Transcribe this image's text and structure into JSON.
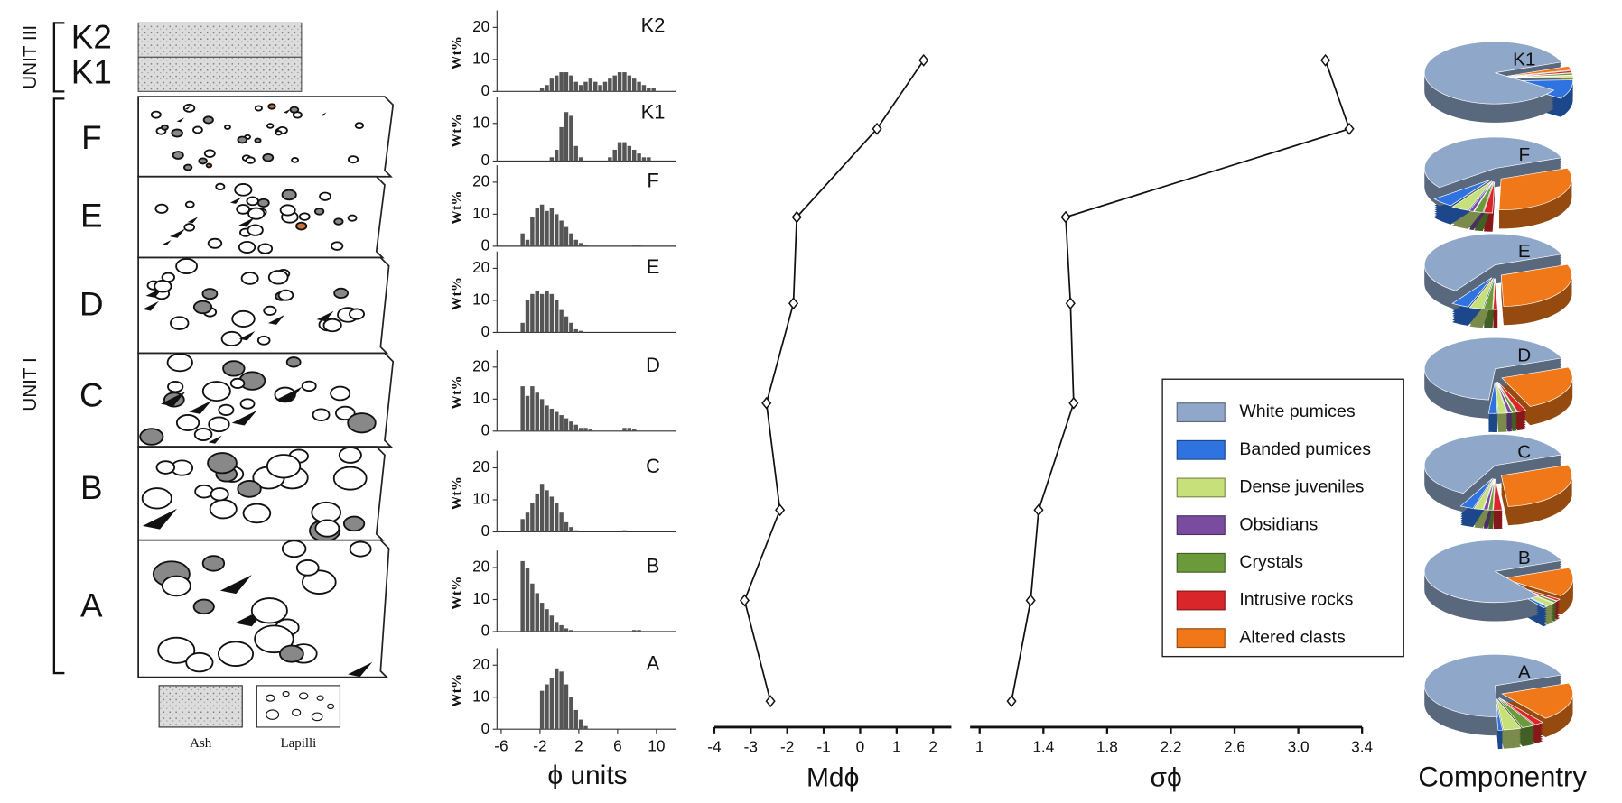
{
  "stratigraphy": {
    "units": [
      "UNIT III",
      "UNIT I"
    ],
    "beds": [
      "K2",
      "K1",
      "F",
      "E",
      "D",
      "C",
      "B",
      "A"
    ],
    "legend": [
      "Ash",
      "Lapilli"
    ]
  },
  "chart_data": [
    {
      "type": "histogram",
      "title": "K2",
      "ylabel": "Wt%",
      "xlim": [
        -6,
        12
      ],
      "ylim": [
        0,
        24
      ],
      "yticks": [
        0,
        10,
        20
      ],
      "bins": [
        -4,
        -3.5,
        -3,
        -2.5,
        -2,
        -1.5,
        -1,
        -0.5,
        0,
        0.5,
        1,
        1.5,
        2,
        2.5,
        3,
        3.5,
        4,
        4.5,
        5,
        5.5,
        6,
        6.5,
        7,
        7.5,
        8,
        8.5,
        9,
        9.5,
        10
      ],
      "values": [
        0,
        0,
        0,
        0,
        1,
        2,
        4,
        5,
        6,
        6,
        5,
        3,
        2,
        3,
        4,
        3,
        2,
        3,
        4,
        5,
        6,
        6,
        5,
        4,
        3,
        2,
        1,
        1
      ],
      "color": "#555555"
    },
    {
      "type": "histogram",
      "title": "K1",
      "ylabel": "Wt%",
      "xlim": [
        -6,
        12
      ],
      "ylim": [
        0,
        16
      ],
      "yticks": [
        0,
        10
      ],
      "bins": [
        -4,
        -3.5,
        -3,
        -2.5,
        -2,
        -1.5,
        -1,
        -0.5,
        0,
        0.5,
        1,
        1.5,
        2,
        2.5,
        3,
        3.5,
        4,
        4.5,
        5,
        5.5,
        6,
        6.5,
        7,
        7.5,
        8,
        8.5,
        9,
        9.5,
        10
      ],
      "values": [
        0,
        0,
        0,
        0,
        0,
        0,
        1,
        3,
        9,
        13,
        12,
        4,
        1,
        0,
        0,
        0,
        0,
        0,
        1,
        3,
        5,
        5,
        4,
        3,
        2,
        1,
        1,
        0
      ],
      "color": "#555555"
    },
    {
      "type": "histogram",
      "title": "F",
      "ylabel": "Wt%",
      "xlim": [
        -6,
        12
      ],
      "ylim": [
        0,
        24
      ],
      "yticks": [
        0,
        10,
        20
      ],
      "bins": [
        -4,
        -3.5,
        -3,
        -2.5,
        -2,
        -1.5,
        -1,
        -0.5,
        0,
        0.5,
        1,
        1.5,
        2,
        2.5,
        3,
        3.5,
        4,
        4.5,
        5,
        5.5,
        6,
        6.5,
        7,
        7.5,
        8,
        8.5,
        9,
        9.5,
        10
      ],
      "values": [
        4,
        2,
        9,
        12,
        13,
        11,
        12,
        10,
        8,
        6,
        4,
        2,
        1,
        0.5,
        0,
        0,
        0,
        0,
        0,
        0,
        0,
        0,
        0,
        0.5,
        0.5,
        0,
        0,
        0
      ],
      "color": "#555555"
    },
    {
      "type": "histogram",
      "title": "E",
      "ylabel": "Wt%",
      "xlim": [
        -6,
        12
      ],
      "ylim": [
        0,
        24
      ],
      "yticks": [
        0,
        10,
        20
      ],
      "bins": [
        -4,
        -3.5,
        -3,
        -2.5,
        -2,
        -1.5,
        -1,
        -0.5,
        0,
        0.5,
        1,
        1.5,
        2,
        2.5,
        3,
        3.5,
        4,
        4.5,
        5,
        5.5,
        6,
        6.5,
        7,
        7.5,
        8,
        8.5,
        9,
        9.5,
        10
      ],
      "values": [
        3,
        10,
        12,
        13,
        12,
        13,
        12,
        10,
        7,
        5,
        3,
        1,
        0.5,
        0,
        0,
        0,
        0,
        0,
        0,
        0,
        0,
        0,
        0,
        0,
        0,
        0,
        0,
        0
      ],
      "color": "#555555"
    },
    {
      "type": "histogram",
      "title": "D",
      "ylabel": "Wt%",
      "xlim": [
        -6,
        12
      ],
      "ylim": [
        0,
        24
      ],
      "yticks": [
        0,
        10,
        20
      ],
      "bins": [
        -4,
        -3.5,
        -3,
        -2.5,
        -2,
        -1.5,
        -1,
        -0.5,
        0,
        0.5,
        1,
        1.5,
        2,
        2.5,
        3,
        3.5,
        4,
        4.5,
        5,
        5.5,
        6,
        6.5,
        7,
        7.5,
        8,
        8.5,
        9,
        9.5,
        10
      ],
      "values": [
        14,
        11,
        14,
        12,
        10,
        8,
        7,
        6,
        5,
        4,
        3,
        2,
        1,
        1,
        0.5,
        0,
        0,
        0,
        0,
        0,
        0,
        1,
        1,
        0.5,
        0,
        0,
        0,
        0
      ],
      "color": "#555555"
    },
    {
      "type": "histogram",
      "title": "C",
      "ylabel": "Wt%",
      "xlim": [
        -6,
        12
      ],
      "ylim": [
        0,
        24
      ],
      "yticks": [
        0,
        10,
        20
      ],
      "bins": [
        -4,
        -3.5,
        -3,
        -2.5,
        -2,
        -1.5,
        -1,
        -0.5,
        0,
        0.5,
        1,
        1.5,
        2,
        2.5,
        3,
        3.5,
        4,
        4.5,
        5,
        5.5,
        6,
        6.5,
        7,
        7.5,
        8,
        8.5,
        9,
        9.5,
        10
      ],
      "values": [
        4,
        6,
        9,
        12,
        15,
        13,
        11,
        9,
        6,
        3,
        1.5,
        0.5,
        0,
        0,
        0,
        0,
        0,
        0,
        0,
        0,
        0,
        0.5,
        0,
        0,
        0,
        0,
        0,
        0
      ],
      "color": "#555555"
    },
    {
      "type": "histogram",
      "title": "B",
      "ylabel": "Wt%",
      "xlim": [
        -6,
        12
      ],
      "ylim": [
        0,
        24
      ],
      "yticks": [
        0,
        10,
        20
      ],
      "bins": [
        -4,
        -3.5,
        -3,
        -2.5,
        -2,
        -1.5,
        -1,
        -0.5,
        0,
        0.5,
        1,
        1.5,
        2,
        2.5,
        3,
        3.5,
        4,
        4.5,
        5,
        5.5,
        6,
        6.5,
        7,
        7.5,
        8,
        8.5,
        9,
        9.5,
        10
      ],
      "values": [
        22,
        20,
        15,
        12,
        9,
        7,
        5,
        3,
        2,
        1,
        0.5,
        0,
        0,
        0,
        0,
        0,
        0,
        0,
        0,
        0,
        0,
        0,
        0,
        0.5,
        0.5,
        0,
        0,
        0
      ],
      "color": "#555555"
    },
    {
      "type": "histogram",
      "title": "A",
      "ylabel": "Wt%",
      "xlabel": "ϕ units",
      "xlim": [
        -6,
        12
      ],
      "xticks": [
        -6,
        -2,
        2,
        6,
        10
      ],
      "ylim": [
        0,
        24
      ],
      "yticks": [
        0,
        10,
        20
      ],
      "bins": [
        -4,
        -3.5,
        -3,
        -2.5,
        -2,
        -1.5,
        -1,
        -0.5,
        0,
        0.5,
        1,
        1.5,
        2,
        2.5,
        3,
        3.5,
        4,
        4.5,
        5,
        5.5,
        6,
        6.5,
        7,
        7.5,
        8,
        8.5,
        9,
        9.5,
        10
      ],
      "values": [
        0,
        0,
        0,
        0,
        12,
        14,
        16,
        19,
        18,
        14,
        10,
        6,
        3,
        1,
        0,
        0,
        0,
        0,
        0,
        0,
        0,
        0,
        0,
        0,
        0,
        0,
        0,
        0
      ],
      "color": "#555555"
    },
    {
      "type": "line",
      "xlabel": "Mdϕ",
      "xlim": [
        -4,
        2.5
      ],
      "xticks": [
        -4,
        -3,
        -2,
        -1,
        0,
        1,
        2
      ],
      "values": [
        1.74,
        0.46,
        -1.74,
        -1.83,
        -2.57,
        -2.2,
        -3.17,
        -2.46
      ],
      "color": "#111111"
    },
    {
      "type": "line",
      "xlabel": "σϕ",
      "xlim": [
        0.94,
        3.4
      ],
      "xticks": [
        1,
        1.4,
        1.8,
        2.2,
        2.6,
        {
          "value": 3,
          "label": "3.0"
        },
        3.4
      ],
      "values": [
        3.17,
        3.32,
        1.54,
        1.57,
        1.59,
        1.37,
        1.32,
        1.2
      ],
      "color": "#111111"
    },
    {
      "type": "pie",
      "title": "Componentry",
      "categories": [
        "White pumices",
        "Banded pumices",
        "Dense juveniles",
        "Obsidians",
        "Crystals",
        "Intrusive rocks",
        "Altered clasts"
      ],
      "colors": [
        "#8fa7c9",
        "#2f73e0",
        "#c7e07a",
        "#7a4ca0",
        "#6b9a3a",
        "#d9262a",
        "#f07818"
      ],
      "series": [
        {
          "name": "K1",
          "values": [
            85,
            10,
            1,
            0,
            1,
            1,
            2
          ]
        },
        {
          "name": "F",
          "values": [
            55,
            5,
            4,
            1,
            2,
            2,
            31
          ]
        },
        {
          "name": "E",
          "values": [
            60,
            4,
            3,
            0,
            2,
            1,
            30
          ]
        },
        {
          "name": "D",
          "values": [
            68,
            2,
            2,
            1,
            1,
            2,
            24
          ]
        },
        {
          "name": "C",
          "values": [
            62,
            3,
            2,
            1,
            1,
            2,
            29
          ]
        },
        {
          "name": "B",
          "values": [
            80,
            1,
            2,
            0,
            1,
            1,
            15
          ]
        },
        {
          "name": "A",
          "values": [
            70,
            1,
            4,
            0,
            3,
            2,
            20
          ]
        }
      ]
    }
  ]
}
